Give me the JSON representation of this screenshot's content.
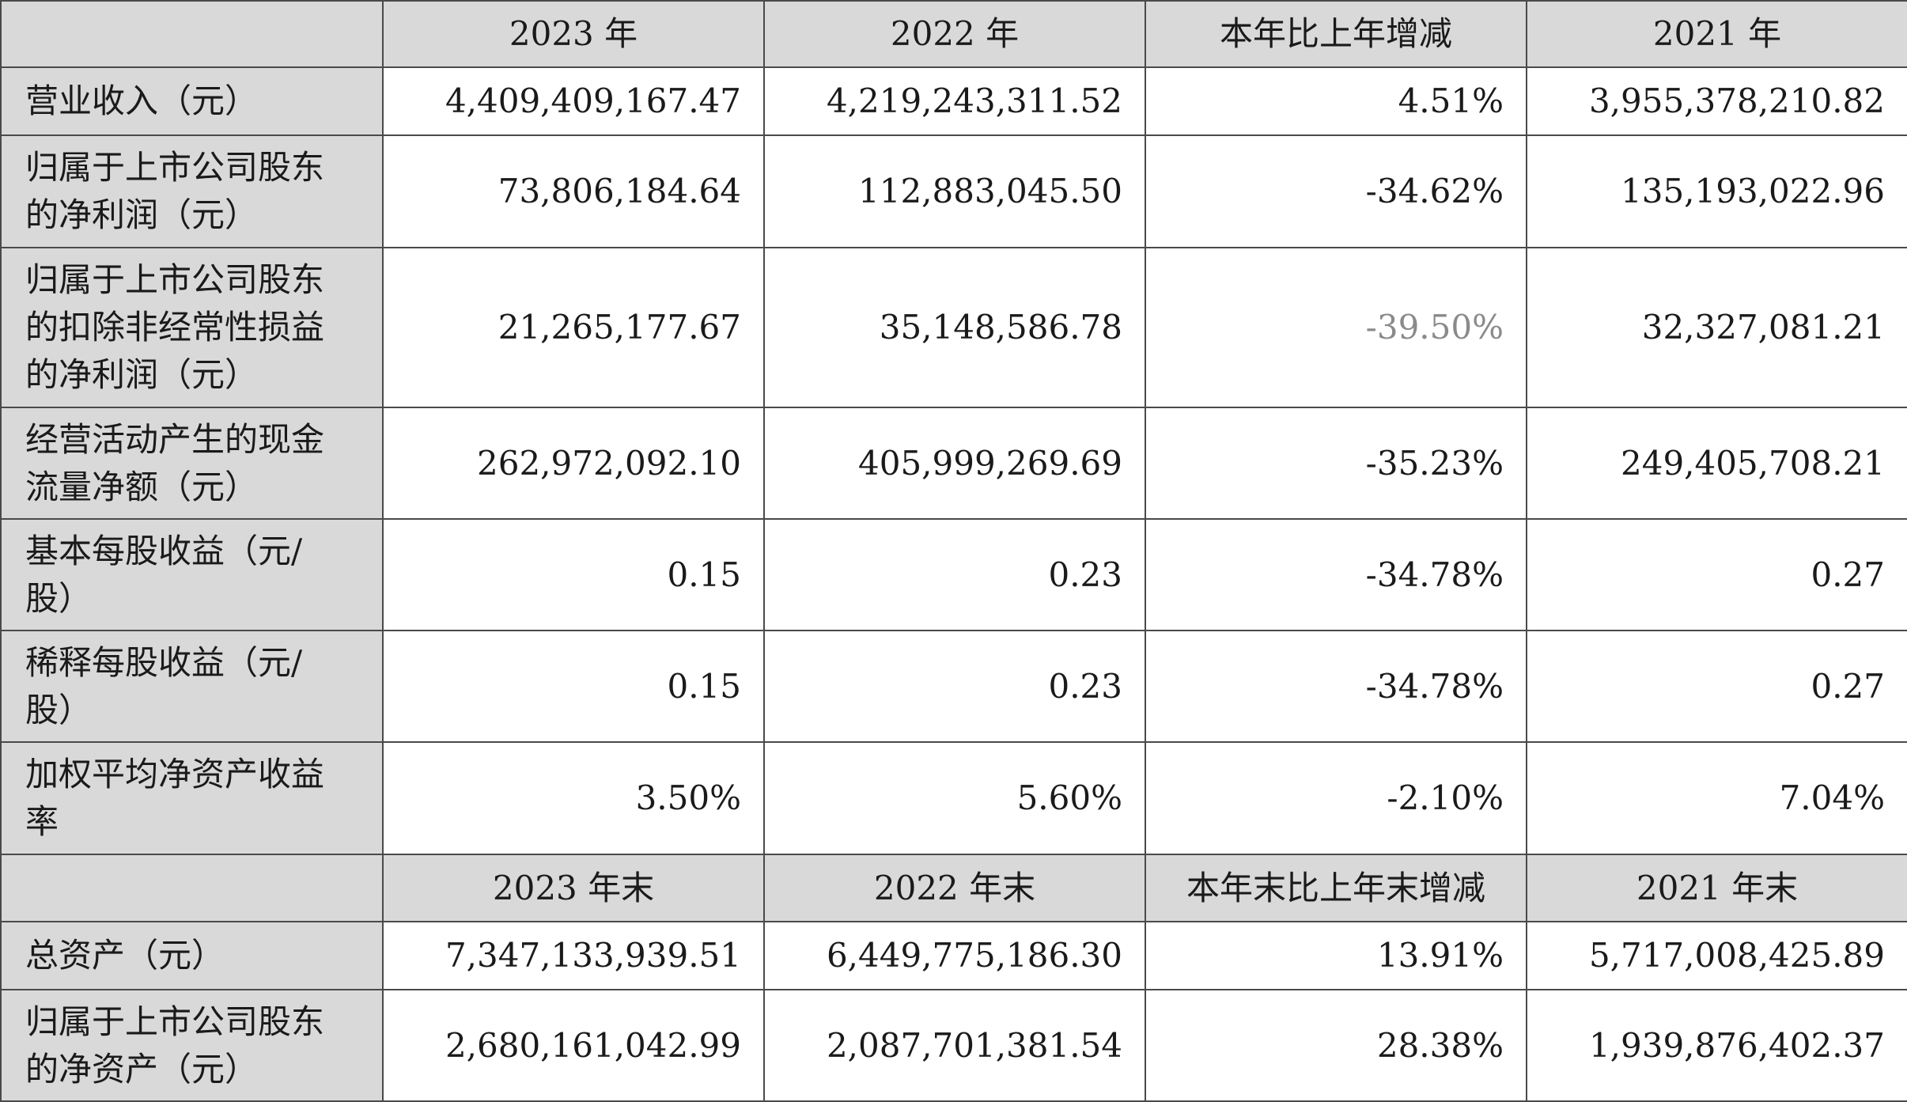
{
  "header_period": [
    "2023 年",
    "2022 年",
    "本年比上年增减",
    "2021 年"
  ],
  "header_balance": [
    "2023 年末",
    "2022 年末",
    "本年末比上年末增减",
    "2021 年末"
  ],
  "rows_period": [
    {
      "label": [
        "营业收入（元）"
      ],
      "values": [
        "4,409,409,167.47",
        "4,219,243,311.52",
        "4.51%",
        "3,955,378,210.82"
      ]
    },
    {
      "label": [
        "归属于上市公司股东",
        "的净利润（元）"
      ],
      "values": [
        "73,806,184.64",
        "112,883,045.50",
        "-34.62%",
        "135,193,022.96"
      ]
    },
    {
      "label": [
        "归属于上市公司股东",
        "的扣除非经常性损益",
        "的净利润（元）"
      ],
      "values": [
        "21,265,177.67",
        "35,148,586.78",
        "-39.50%",
        "32,327,081.21"
      ]
    },
    {
      "label": [
        "经营活动产生的现金",
        "流量净额（元）"
      ],
      "values": [
        "262,972,092.10",
        "405,999,269.69",
        "-35.23%",
        "249,405,708.21"
      ]
    },
    {
      "label": [
        "基本每股收益（元/",
        "股）"
      ],
      "values": [
        "0.15",
        "0.23",
        "-34.78%",
        "0.27"
      ]
    },
    {
      "label": [
        "稀释每股收益（元/",
        "股）"
      ],
      "values": [
        "0.15",
        "0.23",
        "-34.78%",
        "0.27"
      ]
    },
    {
      "label": [
        "加权平均净资产收益",
        "率"
      ],
      "values": [
        "3.50%",
        "5.60%",
        "-2.10%",
        "7.04%"
      ]
    }
  ],
  "rows_balance": [
    {
      "label": [
        "总资产（元）"
      ],
      "values": [
        "7,347,133,939.51",
        "6,449,775,186.30",
        "13.91%",
        "5,717,008,425.89"
      ]
    },
    {
      "label": [
        "归属于上市公司股东",
        "的净资产（元）"
      ],
      "values": [
        "2,680,161,042.99",
        "2,087,701,381.54",
        "28.38%",
        "1,939,876,402.37"
      ]
    }
  ]
}
